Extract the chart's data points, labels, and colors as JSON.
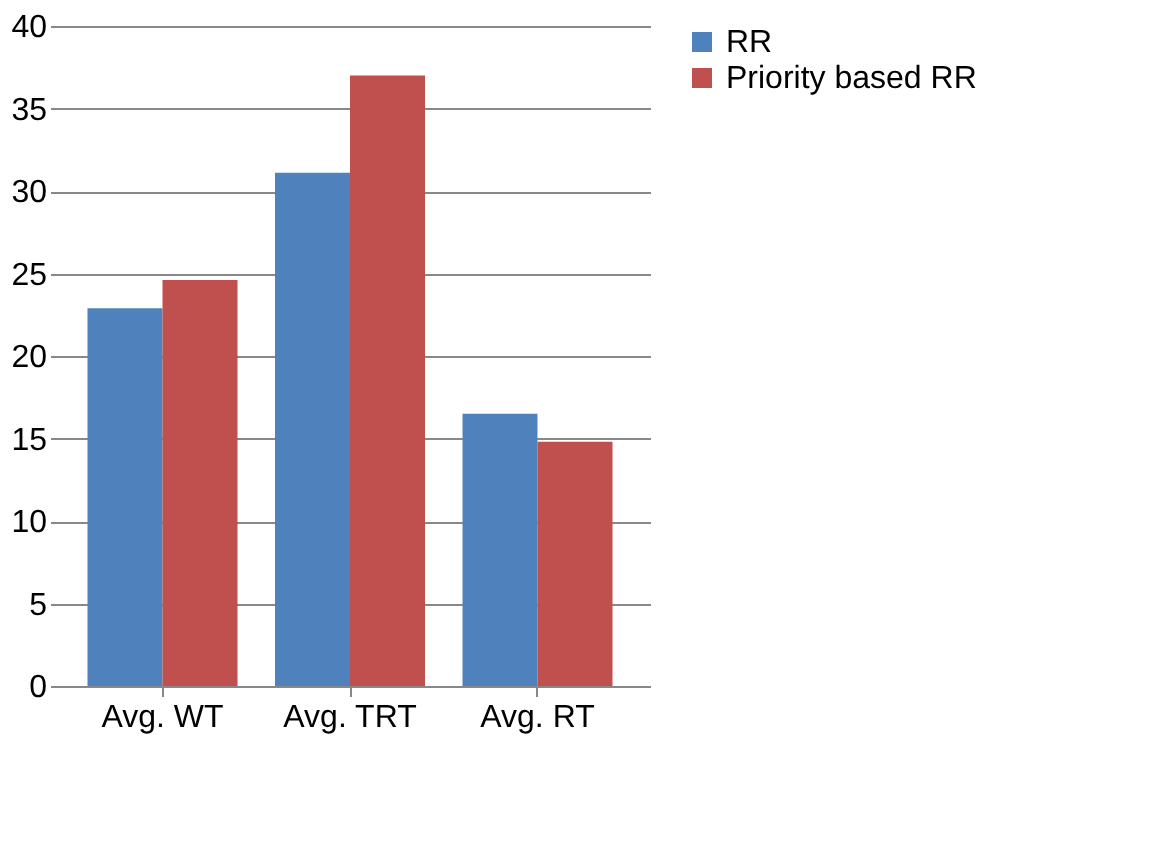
{
  "chart_data": {
    "type": "bar",
    "categories": [
      "Avg. WT",
      "Avg. TRT",
      "Avg. RT"
    ],
    "series": [
      {
        "name": "RR",
        "color": "#4f81bd",
        "values": [
          22.9,
          31.1,
          16.5
        ]
      },
      {
        "name": "Priority based RR",
        "color": "#c0504d",
        "values": [
          24.6,
          37.0,
          14.8
        ]
      }
    ],
    "ylim": [
      0,
      40
    ],
    "yticks": [
      0,
      5,
      10,
      15,
      20,
      25,
      30,
      35,
      40
    ],
    "grid": "y",
    "legend": "right"
  }
}
